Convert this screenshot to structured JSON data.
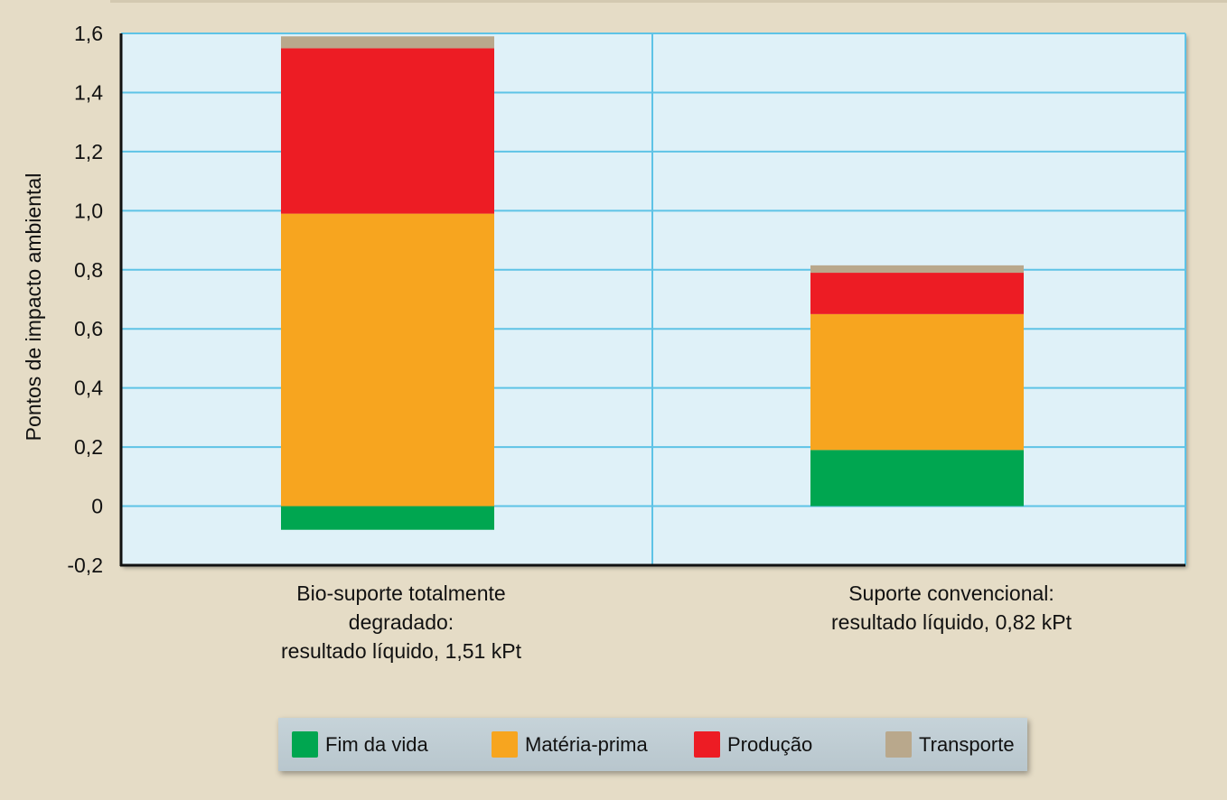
{
  "chart_data": {
    "type": "bar",
    "stacked": true,
    "ylabel": "Pontos de impacto ambiental",
    "ylim": [
      -0.2,
      1.6
    ],
    "yticks": [
      {
        "value": 1.6,
        "label": "1,6"
      },
      {
        "value": 1.4,
        "label": "1,4"
      },
      {
        "value": 1.2,
        "label": "1,2"
      },
      {
        "value": 1.0,
        "label": "1,0"
      },
      {
        "value": 0.8,
        "label": "0,8"
      },
      {
        "value": 0.6,
        "label": "0,6"
      },
      {
        "value": 0.4,
        "label": "0,4"
      },
      {
        "value": 0.2,
        "label": "0,2"
      },
      {
        "value": 0.0,
        "label": "0"
      },
      {
        "value": -0.2,
        "label": "-0,2"
      }
    ],
    "grid": true,
    "categories": [
      {
        "lines": [
          "Bio-suporte totalmente",
          "degradado:",
          "resultado líquido, 1,51 kPt"
        ]
      },
      {
        "lines": [
          "Suporte convencional:",
          "resultado líquido, 0,82 kPt"
        ]
      }
    ],
    "series": [
      {
        "name": "Fim da vida",
        "color": "#00a650",
        "values": [
          -0.08,
          0.19
        ]
      },
      {
        "name": "Matéria-prima",
        "color": "#f7a51f",
        "values": [
          0.99,
          0.46
        ]
      },
      {
        "name": "Produção",
        "color": "#ed1c24",
        "values": [
          0.56,
          0.14
        ]
      },
      {
        "name": "Transporte",
        "color": "#b9a88c",
        "values": [
          0.04,
          0.025
        ]
      }
    ],
    "legend_position": "bottom"
  }
}
